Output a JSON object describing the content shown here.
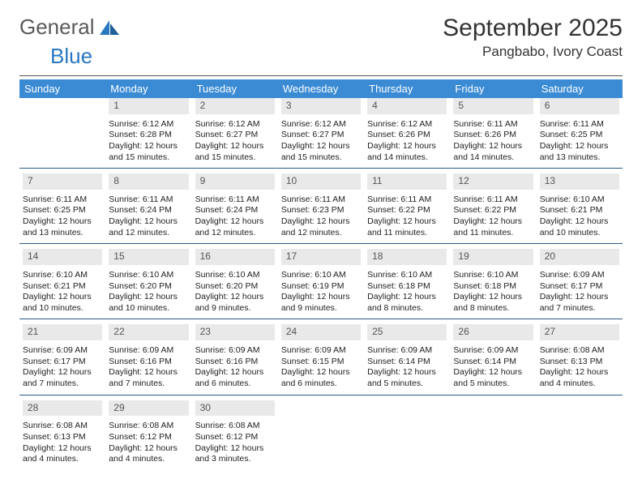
{
  "brand": {
    "word1": "General",
    "word2": "Blue"
  },
  "title": "September 2025",
  "location": "Pangbabo, Ivory Coast",
  "colors": {
    "header_bg": "#3b8bd4",
    "header_text": "#ffffff",
    "daynum_bg": "#e9e9e9",
    "daynum_text": "#555555",
    "rule": "#2a5a8a",
    "brand_gray": "#5a5a5a",
    "brand_blue": "#2a78c0",
    "body_text": "#222222",
    "background": "#ffffff"
  },
  "typography": {
    "title_fontsize": 30,
    "location_fontsize": 17,
    "header_fontsize": 13,
    "daynum_fontsize": 12,
    "cell_fontsize": 10.5,
    "logo_fontsize": 26
  },
  "day_headers": [
    "Sunday",
    "Monday",
    "Tuesday",
    "Wednesday",
    "Thursday",
    "Friday",
    "Saturday"
  ],
  "weeks": [
    [
      null,
      {
        "n": "1",
        "sunrise": "6:12 AM",
        "sunset": "6:28 PM",
        "daylight": "12 hours and 15 minutes."
      },
      {
        "n": "2",
        "sunrise": "6:12 AM",
        "sunset": "6:27 PM",
        "daylight": "12 hours and 15 minutes."
      },
      {
        "n": "3",
        "sunrise": "6:12 AM",
        "sunset": "6:27 PM",
        "daylight": "12 hours and 15 minutes."
      },
      {
        "n": "4",
        "sunrise": "6:12 AM",
        "sunset": "6:26 PM",
        "daylight": "12 hours and 14 minutes."
      },
      {
        "n": "5",
        "sunrise": "6:11 AM",
        "sunset": "6:26 PM",
        "daylight": "12 hours and 14 minutes."
      },
      {
        "n": "6",
        "sunrise": "6:11 AM",
        "sunset": "6:25 PM",
        "daylight": "12 hours and 13 minutes."
      }
    ],
    [
      {
        "n": "7",
        "sunrise": "6:11 AM",
        "sunset": "6:25 PM",
        "daylight": "12 hours and 13 minutes."
      },
      {
        "n": "8",
        "sunrise": "6:11 AM",
        "sunset": "6:24 PM",
        "daylight": "12 hours and 12 minutes."
      },
      {
        "n": "9",
        "sunrise": "6:11 AM",
        "sunset": "6:24 PM",
        "daylight": "12 hours and 12 minutes."
      },
      {
        "n": "10",
        "sunrise": "6:11 AM",
        "sunset": "6:23 PM",
        "daylight": "12 hours and 12 minutes."
      },
      {
        "n": "11",
        "sunrise": "6:11 AM",
        "sunset": "6:22 PM",
        "daylight": "12 hours and 11 minutes."
      },
      {
        "n": "12",
        "sunrise": "6:11 AM",
        "sunset": "6:22 PM",
        "daylight": "12 hours and 11 minutes."
      },
      {
        "n": "13",
        "sunrise": "6:10 AM",
        "sunset": "6:21 PM",
        "daylight": "12 hours and 10 minutes."
      }
    ],
    [
      {
        "n": "14",
        "sunrise": "6:10 AM",
        "sunset": "6:21 PM",
        "daylight": "12 hours and 10 minutes."
      },
      {
        "n": "15",
        "sunrise": "6:10 AM",
        "sunset": "6:20 PM",
        "daylight": "12 hours and 10 minutes."
      },
      {
        "n": "16",
        "sunrise": "6:10 AM",
        "sunset": "6:20 PM",
        "daylight": "12 hours and 9 minutes."
      },
      {
        "n": "17",
        "sunrise": "6:10 AM",
        "sunset": "6:19 PM",
        "daylight": "12 hours and 9 minutes."
      },
      {
        "n": "18",
        "sunrise": "6:10 AM",
        "sunset": "6:18 PM",
        "daylight": "12 hours and 8 minutes."
      },
      {
        "n": "19",
        "sunrise": "6:10 AM",
        "sunset": "6:18 PM",
        "daylight": "12 hours and 8 minutes."
      },
      {
        "n": "20",
        "sunrise": "6:09 AM",
        "sunset": "6:17 PM",
        "daylight": "12 hours and 7 minutes."
      }
    ],
    [
      {
        "n": "21",
        "sunrise": "6:09 AM",
        "sunset": "6:17 PM",
        "daylight": "12 hours and 7 minutes."
      },
      {
        "n": "22",
        "sunrise": "6:09 AM",
        "sunset": "6:16 PM",
        "daylight": "12 hours and 7 minutes."
      },
      {
        "n": "23",
        "sunrise": "6:09 AM",
        "sunset": "6:16 PM",
        "daylight": "12 hours and 6 minutes."
      },
      {
        "n": "24",
        "sunrise": "6:09 AM",
        "sunset": "6:15 PM",
        "daylight": "12 hours and 6 minutes."
      },
      {
        "n": "25",
        "sunrise": "6:09 AM",
        "sunset": "6:14 PM",
        "daylight": "12 hours and 5 minutes."
      },
      {
        "n": "26",
        "sunrise": "6:09 AM",
        "sunset": "6:14 PM",
        "daylight": "12 hours and 5 minutes."
      },
      {
        "n": "27",
        "sunrise": "6:08 AM",
        "sunset": "6:13 PM",
        "daylight": "12 hours and 4 minutes."
      }
    ],
    [
      {
        "n": "28",
        "sunrise": "6:08 AM",
        "sunset": "6:13 PM",
        "daylight": "12 hours and 4 minutes."
      },
      {
        "n": "29",
        "sunrise": "6:08 AM",
        "sunset": "6:12 PM",
        "daylight": "12 hours and 4 minutes."
      },
      {
        "n": "30",
        "sunrise": "6:08 AM",
        "sunset": "6:12 PM",
        "daylight": "12 hours and 3 minutes."
      },
      null,
      null,
      null,
      null
    ]
  ],
  "labels": {
    "sunrise": "Sunrise:",
    "sunset": "Sunset:",
    "daylight": "Daylight:"
  }
}
